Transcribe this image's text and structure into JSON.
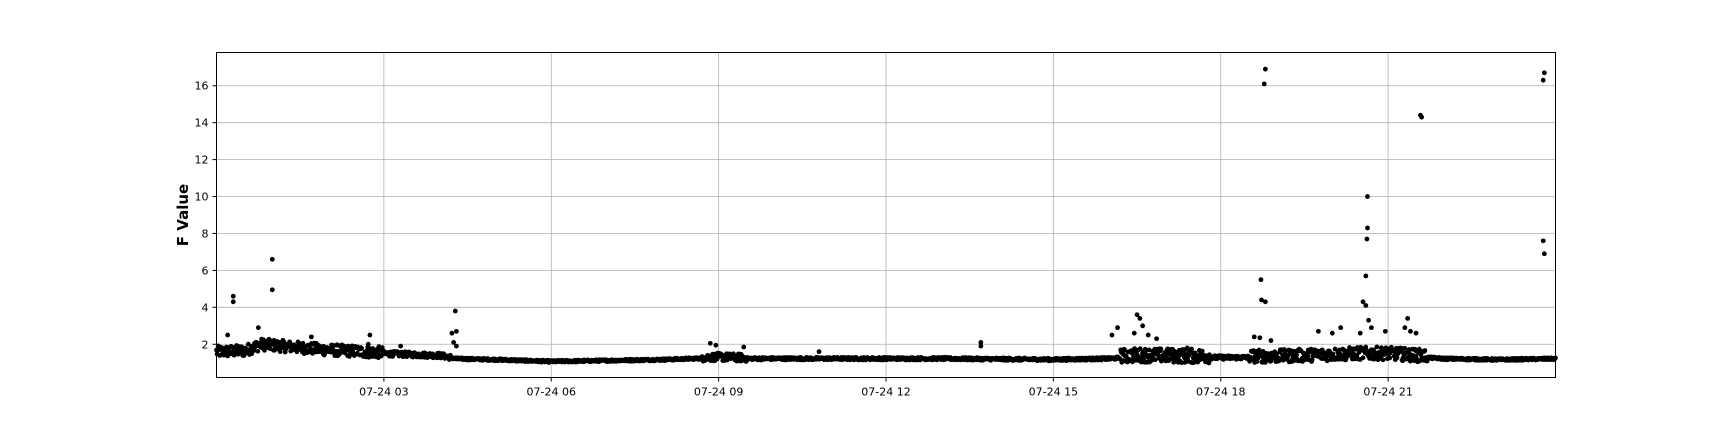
{
  "chart_data": {
    "type": "scatter",
    "title": "",
    "xlabel": "",
    "ylabel": "F Value",
    "x_unit": "hours",
    "xlim": [
      0,
      24
    ],
    "ylim": [
      0.2,
      17.8
    ],
    "x_ticks": [
      {
        "value": 3,
        "label": "07-24 03"
      },
      {
        "value": 6,
        "label": "07-24 06"
      },
      {
        "value": 9,
        "label": "07-24 09"
      },
      {
        "value": 12,
        "label": "07-24 12"
      },
      {
        "value": 15,
        "label": "07-24 15"
      },
      {
        "value": 18,
        "label": "07-24 18"
      },
      {
        "value": 21,
        "label": "07-24 21"
      }
    ],
    "y_ticks": [
      {
        "value": 2,
        "label": "2"
      },
      {
        "value": 4,
        "label": "4"
      },
      {
        "value": 6,
        "label": "6"
      },
      {
        "value": 8,
        "label": "8"
      },
      {
        "value": 10,
        "label": "10"
      },
      {
        "value": 12,
        "label": "12"
      },
      {
        "value": 14,
        "label": "14"
      },
      {
        "value": 16,
        "label": "16"
      }
    ],
    "grid": true,
    "marker_color": "#000000",
    "baseline_profile": [
      [
        0.0,
        1.5
      ],
      [
        0.5,
        1.55
      ],
      [
        0.8,
        1.9
      ],
      [
        1.2,
        1.8
      ],
      [
        2.0,
        1.6
      ],
      [
        3.0,
        1.45
      ],
      [
        4.0,
        1.35
      ],
      [
        4.3,
        1.2
      ],
      [
        5.0,
        1.15
      ],
      [
        6.0,
        1.05
      ],
      [
        7.0,
        1.1
      ],
      [
        8.0,
        1.15
      ],
      [
        9.0,
        1.25
      ],
      [
        9.5,
        1.2
      ],
      [
        11.0,
        1.2
      ],
      [
        13.0,
        1.2
      ],
      [
        15.0,
        1.15
      ],
      [
        16.0,
        1.2
      ],
      [
        16.5,
        1.3
      ],
      [
        17.5,
        1.25
      ],
      [
        19.0,
        1.25
      ],
      [
        20.5,
        1.4
      ],
      [
        21.0,
        1.4
      ],
      [
        22.0,
        1.2
      ],
      [
        23.0,
        1.15
      ],
      [
        24.0,
        1.2
      ]
    ],
    "noise_bands": [
      {
        "x_from": 0.0,
        "x_to": 3.0,
        "spread": 0.45
      },
      {
        "x_from": 3.0,
        "x_to": 4.2,
        "spread": 0.2
      },
      {
        "x_from": 4.2,
        "x_to": 8.7,
        "spread": 0.08
      },
      {
        "x_from": 8.7,
        "x_to": 9.5,
        "spread": 0.3
      },
      {
        "x_from": 9.5,
        "x_to": 16.2,
        "spread": 0.1
      },
      {
        "x_from": 16.2,
        "x_to": 17.8,
        "spread": 0.55
      },
      {
        "x_from": 17.8,
        "x_to": 18.5,
        "spread": 0.15
      },
      {
        "x_from": 18.5,
        "x_to": 21.7,
        "spread": 0.5
      },
      {
        "x_from": 21.7,
        "x_to": 24.0,
        "spread": 0.08
      }
    ],
    "outliers": [
      [
        0.3,
        4.6
      ],
      [
        0.3,
        4.3
      ],
      [
        0.2,
        2.5
      ],
      [
        0.75,
        2.9
      ],
      [
        1.0,
        6.6
      ],
      [
        1.0,
        4.95
      ],
      [
        1.7,
        2.4
      ],
      [
        2.75,
        2.5
      ],
      [
        2.72,
        2.0
      ],
      [
        3.3,
        1.9
      ],
      [
        4.28,
        3.8
      ],
      [
        4.22,
        2.6
      ],
      [
        4.3,
        2.7
      ],
      [
        4.25,
        2.1
      ],
      [
        4.3,
        1.9
      ],
      [
        8.85,
        2.05
      ],
      [
        8.95,
        1.95
      ],
      [
        9.45,
        1.85
      ],
      [
        10.8,
        1.6
      ],
      [
        13.7,
        2.1
      ],
      [
        13.7,
        1.9
      ],
      [
        16.05,
        2.5
      ],
      [
        16.15,
        2.9
      ],
      [
        16.5,
        3.6
      ],
      [
        16.55,
        3.4
      ],
      [
        16.6,
        3.0
      ],
      [
        16.45,
        2.6
      ],
      [
        16.7,
        2.5
      ],
      [
        16.85,
        2.3
      ],
      [
        17.4,
        1.8
      ],
      [
        18.6,
        2.4
      ],
      [
        18.7,
        2.35
      ],
      [
        18.72,
        5.5
      ],
      [
        18.73,
        4.4
      ],
      [
        18.8,
        4.3
      ],
      [
        18.78,
        16.1
      ],
      [
        18.8,
        16.9
      ],
      [
        18.9,
        2.2
      ],
      [
        19.75,
        2.7
      ],
      [
        20.15,
        2.9
      ],
      [
        20.0,
        2.6
      ],
      [
        20.55,
        4.3
      ],
      [
        20.6,
        4.1
      ],
      [
        20.6,
        5.7
      ],
      [
        20.62,
        7.7
      ],
      [
        20.63,
        8.3
      ],
      [
        20.63,
        10.0
      ],
      [
        20.5,
        2.6
      ],
      [
        20.65,
        3.3
      ],
      [
        20.7,
        2.9
      ],
      [
        20.95,
        2.7
      ],
      [
        21.3,
        2.9
      ],
      [
        21.35,
        3.4
      ],
      [
        21.4,
        2.7
      ],
      [
        21.5,
        2.6
      ],
      [
        21.58,
        14.4
      ],
      [
        21.6,
        14.3
      ],
      [
        23.78,
        16.3
      ],
      [
        23.8,
        16.7
      ],
      [
        23.78,
        7.6
      ],
      [
        23.8,
        6.9
      ]
    ]
  }
}
